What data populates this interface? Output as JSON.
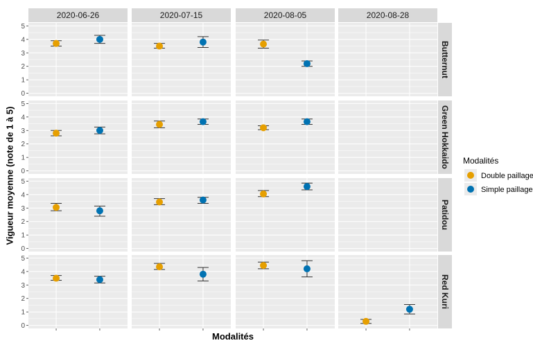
{
  "chart_data": {
    "type": "scatter",
    "xlabel": "Modalités",
    "ylabel": "Vigueur moyenne (note de 1 à 5)",
    "ylim": [
      0,
      5
    ],
    "yticks": [
      0,
      1,
      2,
      3,
      4,
      5
    ],
    "legend": {
      "title": "Modalités",
      "placement": "right",
      "entries": [
        {
          "name": "Double paillage",
          "color": "#E69F00"
        },
        {
          "name": "Simple paillage",
          "color": "#0072B2"
        }
      ]
    },
    "columns": [
      "2020-06-26",
      "2020-07-15",
      "2020-08-05",
      "2020-08-28"
    ],
    "rows": [
      "Butternut",
      "Green Hokkaido",
      "Patidou",
      "Red Kuri"
    ],
    "colors": {
      "Double paillage": "#E69F00",
      "Simple paillage": "#0072B2",
      "panel": "#EBEBEB",
      "strip": "#D9D9D9",
      "grid": "#FFFFFF",
      "errorbar": "#333333"
    },
    "points": [
      {
        "row": "Butternut",
        "col": "2020-06-26",
        "modalite": "Double paillage",
        "y": 3.7,
        "ymin": 3.5,
        "ymax": 3.9
      },
      {
        "row": "Butternut",
        "col": "2020-06-26",
        "modalite": "Simple paillage",
        "y": 4.0,
        "ymin": 3.7,
        "ymax": 4.3
      },
      {
        "row": "Butternut",
        "col": "2020-07-15",
        "modalite": "Double paillage",
        "y": 3.5,
        "ymin": 3.35,
        "ymax": 3.7
      },
      {
        "row": "Butternut",
        "col": "2020-07-15",
        "modalite": "Simple paillage",
        "y": 3.8,
        "ymin": 3.4,
        "ymax": 4.2
      },
      {
        "row": "Butternut",
        "col": "2020-08-05",
        "modalite": "Double paillage",
        "y": 3.65,
        "ymin": 3.35,
        "ymax": 3.95
      },
      {
        "row": "Butternut",
        "col": "2020-08-05",
        "modalite": "Simple paillage",
        "y": 2.2,
        "ymin": 2.0,
        "ymax": 2.4
      },
      {
        "row": "Green Hokkaido",
        "col": "2020-06-26",
        "modalite": "Double paillage",
        "y": 2.8,
        "ymin": 2.6,
        "ymax": 3.0
      },
      {
        "row": "Green Hokkaido",
        "col": "2020-06-26",
        "modalite": "Simple paillage",
        "y": 3.0,
        "ymin": 2.75,
        "ymax": 3.25
      },
      {
        "row": "Green Hokkaido",
        "col": "2020-07-15",
        "modalite": "Double paillage",
        "y": 3.45,
        "ymin": 3.2,
        "ymax": 3.7
      },
      {
        "row": "Green Hokkaido",
        "col": "2020-07-15",
        "modalite": "Simple paillage",
        "y": 3.65,
        "ymin": 3.45,
        "ymax": 3.85
      },
      {
        "row": "Green Hokkaido",
        "col": "2020-08-05",
        "modalite": "Double paillage",
        "y": 3.2,
        "ymin": 3.05,
        "ymax": 3.35
      },
      {
        "row": "Green Hokkaido",
        "col": "2020-08-05",
        "modalite": "Simple paillage",
        "y": 3.65,
        "ymin": 3.45,
        "ymax": 3.85
      },
      {
        "row": "Patidou",
        "col": "2020-06-26",
        "modalite": "Double paillage",
        "y": 3.05,
        "ymin": 2.8,
        "ymax": 3.35
      },
      {
        "row": "Patidou",
        "col": "2020-06-26",
        "modalite": "Simple paillage",
        "y": 2.8,
        "ymin": 2.4,
        "ymax": 3.15
      },
      {
        "row": "Patidou",
        "col": "2020-07-15",
        "modalite": "Double paillage",
        "y": 3.45,
        "ymin": 3.25,
        "ymax": 3.7
      },
      {
        "row": "Patidou",
        "col": "2020-07-15",
        "modalite": "Simple paillage",
        "y": 3.6,
        "ymin": 3.35,
        "ymax": 3.8
      },
      {
        "row": "Patidou",
        "col": "2020-08-05",
        "modalite": "Double paillage",
        "y": 4.05,
        "ymin": 3.85,
        "ymax": 4.3
      },
      {
        "row": "Patidou",
        "col": "2020-08-05",
        "modalite": "Simple paillage",
        "y": 4.6,
        "ymin": 4.35,
        "ymax": 4.85
      },
      {
        "row": "Red Kuri",
        "col": "2020-06-26",
        "modalite": "Double paillage",
        "y": 3.5,
        "ymin": 3.35,
        "ymax": 3.7
      },
      {
        "row": "Red Kuri",
        "col": "2020-06-26",
        "modalite": "Simple paillage",
        "y": 3.4,
        "ymin": 3.15,
        "ymax": 3.65
      },
      {
        "row": "Red Kuri",
        "col": "2020-07-15",
        "modalite": "Double paillage",
        "y": 4.35,
        "ymin": 4.15,
        "ymax": 4.6
      },
      {
        "row": "Red Kuri",
        "col": "2020-07-15",
        "modalite": "Simple paillage",
        "y": 3.8,
        "ymin": 3.3,
        "ymax": 4.3
      },
      {
        "row": "Red Kuri",
        "col": "2020-08-05",
        "modalite": "Double paillage",
        "y": 4.45,
        "ymin": 4.2,
        "ymax": 4.7
      },
      {
        "row": "Red Kuri",
        "col": "2020-08-05",
        "modalite": "Simple paillage",
        "y": 4.2,
        "ymin": 3.6,
        "ymax": 4.8
      },
      {
        "row": "Red Kuri",
        "col": "2020-08-28",
        "modalite": "Double paillage",
        "y": 0.3,
        "ymin": 0.15,
        "ymax": 0.45
      },
      {
        "row": "Red Kuri",
        "col": "2020-08-28",
        "modalite": "Simple paillage",
        "y": 1.2,
        "ymin": 0.85,
        "ymax": 1.55
      }
    ]
  }
}
